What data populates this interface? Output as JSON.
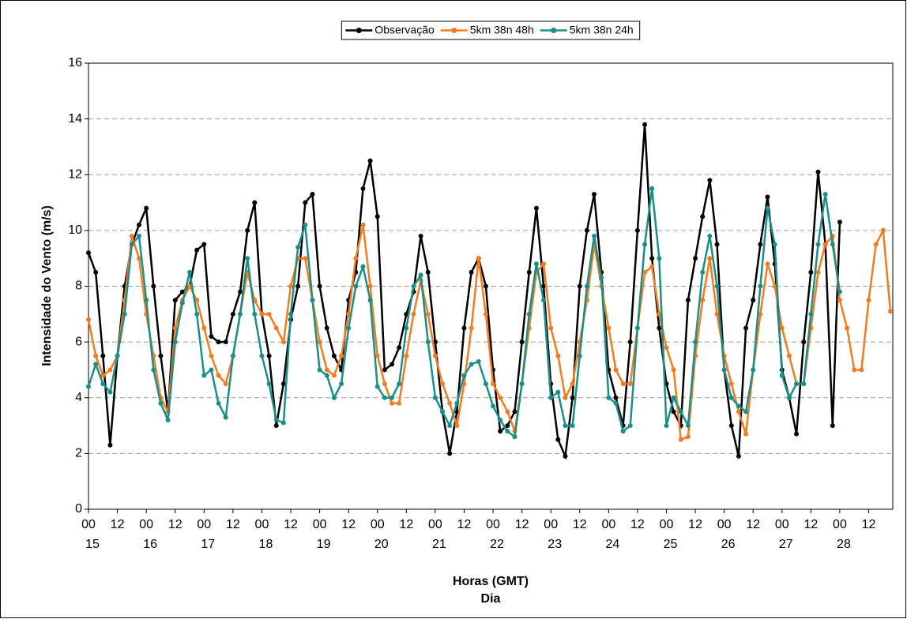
{
  "chart_data": {
    "type": "line",
    "y_label": "Intensidade do Vento (m/s)",
    "x_label": "Horas (GMT)",
    "x_sublabel": "Dia",
    "x": [
      0,
      3,
      6,
      9,
      12,
      15,
      18,
      21,
      24,
      27,
      30,
      33,
      36,
      39,
      42,
      45,
      48,
      51,
      54,
      57,
      60,
      63,
      66,
      69,
      72,
      75,
      78,
      81,
      84,
      87,
      90,
      93,
      96,
      99,
      102,
      105,
      108,
      111,
      114,
      117,
      120,
      123,
      126,
      129,
      132,
      135,
      138,
      141,
      144,
      147,
      150,
      153,
      156,
      159,
      162,
      165,
      168,
      171,
      174,
      177,
      180,
      183,
      186,
      189,
      192,
      195,
      198,
      201,
      204,
      207,
      210,
      213,
      216,
      219,
      222,
      225,
      228,
      231,
      234,
      237,
      240,
      243,
      246,
      249,
      252,
      255,
      258,
      261,
      264,
      267,
      270,
      273,
      276,
      279,
      282,
      285,
      288,
      291,
      294,
      297,
      300,
      303,
      306,
      309,
      312,
      315,
      318,
      321,
      324,
      327,
      330,
      333
    ],
    "xlim": [
      0,
      334
    ],
    "xticks": [
      {
        "value": 0,
        "label": "00"
      },
      {
        "value": 12,
        "label": "12"
      },
      {
        "value": 24,
        "label": "00"
      },
      {
        "value": 36,
        "label": "12"
      },
      {
        "value": 48,
        "label": "00"
      },
      {
        "value": 60,
        "label": "12"
      },
      {
        "value": 72,
        "label": "00"
      },
      {
        "value": 84,
        "label": "12"
      },
      {
        "value": 96,
        "label": "00"
      },
      {
        "value": 108,
        "label": "12"
      },
      {
        "value": 120,
        "label": "00"
      },
      {
        "value": 132,
        "label": "12"
      },
      {
        "value": 144,
        "label": "00"
      },
      {
        "value": 156,
        "label": "12"
      },
      {
        "value": 168,
        "label": "00"
      },
      {
        "value": 180,
        "label": "12"
      },
      {
        "value": 192,
        "label": "00"
      },
      {
        "value": 204,
        "label": "12"
      },
      {
        "value": 216,
        "label": "00"
      },
      {
        "value": 228,
        "label": "12"
      },
      {
        "value": 240,
        "label": "00"
      },
      {
        "value": 252,
        "label": "12"
      },
      {
        "value": 264,
        "label": "00"
      },
      {
        "value": 276,
        "label": "12"
      },
      {
        "value": 288,
        "label": "00"
      },
      {
        "value": 300,
        "label": "12"
      },
      {
        "value": 312,
        "label": "00"
      },
      {
        "value": 324,
        "label": "12"
      }
    ],
    "day_ticks": [
      {
        "value": 0,
        "label": "15"
      },
      {
        "value": 24,
        "label": "16"
      },
      {
        "value": 48,
        "label": "17"
      },
      {
        "value": 72,
        "label": "18"
      },
      {
        "value": 96,
        "label": "19"
      },
      {
        "value": 120,
        "label": "20"
      },
      {
        "value": 144,
        "label": "21"
      },
      {
        "value": 168,
        "label": "22"
      },
      {
        "value": 192,
        "label": "23"
      },
      {
        "value": 216,
        "label": "24"
      },
      {
        "value": 240,
        "label": "25"
      },
      {
        "value": 264,
        "label": "26"
      },
      {
        "value": 288,
        "label": "27"
      },
      {
        "value": 312,
        "label": "28"
      }
    ],
    "ylim": [
      0,
      16
    ],
    "yticks": [
      0,
      2,
      4,
      6,
      8,
      10,
      12,
      14,
      16
    ],
    "grid": true,
    "legend": "top",
    "series": [
      {
        "name": "Observação",
        "color": "#000000",
        "values": [
          9.2,
          8.5,
          5.5,
          2.3,
          5.5,
          8.0,
          9.5,
          10.2,
          10.8,
          8.0,
          5.5,
          3.5,
          7.5,
          7.8,
          8.0,
          9.3,
          9.5,
          6.2,
          6.0,
          6.0,
          7.0,
          7.8,
          10.0,
          11.0,
          7.0,
          5.5,
          3.0,
          4.5,
          6.8,
          8.0,
          11.0,
          11.3,
          8.0,
          6.5,
          5.5,
          5.0,
          7.5,
          8.5,
          11.5,
          12.5,
          10.5,
          5.0,
          5.2,
          5.8,
          7.0,
          7.8,
          9.8,
          8.5,
          6.0,
          3.5,
          2.0,
          3.5,
          6.5,
          8.5,
          9.0,
          8.0,
          5.0,
          2.8,
          3.0,
          3.5,
          6.0,
          8.5,
          10.8,
          8.0,
          4.5,
          2.5,
          1.9,
          4.0,
          8.0,
          10.0,
          11.3,
          8.5,
          5.0,
          4.0,
          3.0,
          6.0,
          10.0,
          13.8,
          9.0,
          6.5,
          4.5,
          3.5,
          3.0,
          7.5,
          9.0,
          10.5,
          11.8,
          9.5,
          5.0,
          3.0,
          1.9,
          6.5,
          7.5,
          9.5,
          11.2,
          8.8,
          5.0,
          4.0,
          2.7,
          6.0,
          8.5,
          12.1,
          9.5,
          3.0,
          10.3,
          null,
          null,
          null,
          null,
          null,
          null,
          null
        ]
      },
      {
        "name": "5km 38n 48h",
        "color": "#f47b20",
        "values": [
          6.8,
          5.5,
          4.8,
          5.0,
          5.5,
          7.5,
          9.8,
          9.0,
          7.0,
          5.5,
          4.0,
          3.5,
          6.5,
          7.5,
          8.0,
          7.5,
          6.5,
          5.5,
          4.8,
          4.5,
          5.5,
          7.0,
          8.5,
          7.5,
          7.0,
          7.0,
          6.5,
          6.0,
          8.0,
          9.0,
          9.0,
          7.5,
          6.0,
          5.0,
          4.8,
          5.5,
          7.0,
          9.0,
          10.2,
          8.0,
          5.5,
          4.5,
          3.8,
          3.8,
          5.5,
          7.0,
          8.2,
          7.0,
          5.5,
          4.5,
          3.8,
          3.0,
          4.5,
          6.5,
          9.0,
          7.0,
          4.5,
          4.0,
          3.5,
          2.8,
          4.5,
          6.5,
          8.5,
          8.8,
          6.5,
          5.5,
          4.0,
          4.5,
          6.0,
          7.5,
          9.5,
          8.0,
          6.5,
          5.0,
          4.5,
          4.5,
          6.5,
          8.5,
          8.7,
          7.0,
          5.8,
          5.0,
          2.5,
          2.6,
          5.5,
          7.5,
          9.0,
          7.0,
          5.5,
          4.5,
          3.5,
          2.7,
          5.0,
          7.0,
          8.8,
          8.0,
          6.5,
          5.5,
          4.5,
          4.5,
          6.5,
          8.5,
          9.5,
          9.8,
          7.5,
          6.5,
          5.0,
          5.0,
          7.5,
          9.5,
          10.0,
          7.1
        ]
      },
      {
        "name": "5km 38n 24h",
        "color": "#1a8f8a",
        "values": [
          4.4,
          5.2,
          4.5,
          4.2,
          5.5,
          7.0,
          9.5,
          9.8,
          7.5,
          5.0,
          3.8,
          3.2,
          6.0,
          7.4,
          8.5,
          7.0,
          4.8,
          5.0,
          3.8,
          3.3,
          5.5,
          7.0,
          9.0,
          7.0,
          5.5,
          4.5,
          3.2,
          3.1,
          7.0,
          9.4,
          10.2,
          7.5,
          5.0,
          4.8,
          4.0,
          4.5,
          6.5,
          8.0,
          8.7,
          7.5,
          4.4,
          4.0,
          4.0,
          4.5,
          6.5,
          8.0,
          8.4,
          6.0,
          4.0,
          3.5,
          3.0,
          3.8,
          4.8,
          5.2,
          5.3,
          4.5,
          3.7,
          3.2,
          2.8,
          2.6,
          4.5,
          7.0,
          8.8,
          7.5,
          4.0,
          4.2,
          3.0,
          3.0,
          5.5,
          8.0,
          9.8,
          8.3,
          4.0,
          3.8,
          2.8,
          3.0,
          6.5,
          9.5,
          11.5,
          9.0,
          3.0,
          4.0,
          3.5,
          3.0,
          6.0,
          8.5,
          9.8,
          8.0,
          5.0,
          4.0,
          3.7,
          3.5,
          5.0,
          8.0,
          10.8,
          9.5,
          4.8,
          4.0,
          4.5,
          4.5,
          7.0,
          9.5,
          11.3,
          9.5,
          7.8,
          null,
          null,
          null,
          null,
          null,
          null,
          null
        ]
      }
    ]
  }
}
